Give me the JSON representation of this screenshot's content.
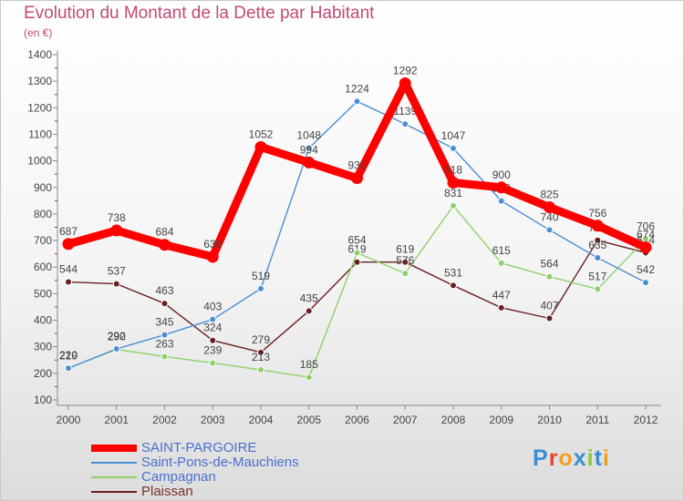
{
  "chart_data": {
    "type": "line",
    "title": "Evolution du Montant de la Dette par Habitant",
    "subtitle": "(en €)",
    "categories": [
      "2000",
      "2001",
      "2002",
      "2003",
      "2004",
      "2005",
      "2006",
      "2007",
      "2008",
      "2009",
      "2010",
      "2011",
      "2012"
    ],
    "ylim": [
      100,
      1400
    ],
    "yticks": [
      100,
      200,
      300,
      400,
      500,
      600,
      700,
      800,
      900,
      1000,
      1100,
      1200,
      1300,
      1400
    ],
    "grid": false,
    "legend_position": "bottom-left",
    "series": [
      {
        "name": "SAINT-PARGOIRE",
        "color": "#ff0000",
        "values": [
          687,
          738,
          684,
          639,
          1052,
          994,
          935,
          1292,
          918,
          900,
          825,
          756,
          674
        ]
      },
      {
        "name": "Saint-Pons-de-Mauchiens",
        "color": "#4a8fd4",
        "values": [
          219,
          292,
          345,
          403,
          519,
          1048,
          1224,
          1139,
          1047,
          849,
          740,
          635,
          542
        ]
      },
      {
        "name": "Campagnan",
        "color": "#8fd06a",
        "values": [
          220,
          290,
          263,
          239,
          213,
          185,
          654,
          576,
          831,
          615,
          564,
          517,
          706
        ]
      },
      {
        "name": "Plaissan",
        "color": "#6a1f1f",
        "values": [
          544,
          537,
          463,
          324,
          279,
          435,
          619,
          619,
          531,
          447,
          407,
          701,
          654
        ]
      }
    ]
  },
  "logo": {
    "letters": [
      "P",
      "r",
      "o",
      "x",
      "i",
      "t",
      "i"
    ],
    "colors": [
      "#3a8ed0",
      "#e8452c",
      "#f0a020",
      "#3a8ed0",
      "#8fc83a",
      "#3a8ed0",
      "#f0a020"
    ]
  }
}
